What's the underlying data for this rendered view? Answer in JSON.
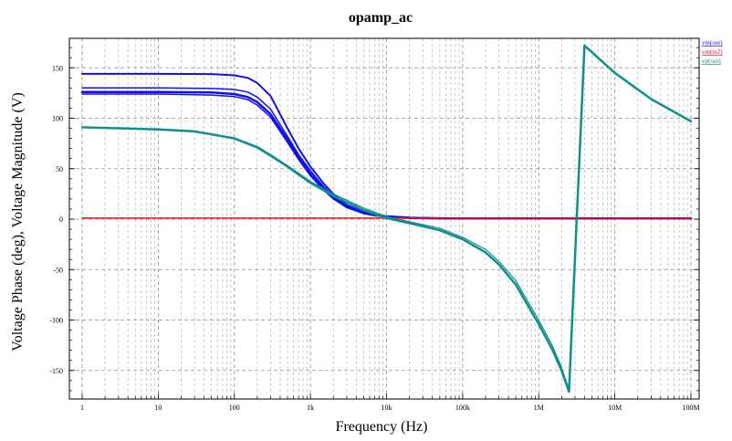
{
  "chart_data": {
    "type": "line",
    "title": "opamp_ac",
    "xlabel": "Frequency (Hz)",
    "ylabel": "Voltage Phase (deg), Voltage Magnitude (V)",
    "x_scale": "log",
    "xlim": [
      1,
      100000000
    ],
    "ylim": [
      -175,
      180
    ],
    "grid": true,
    "legend_position": "top-right outside",
    "x_ticks": [
      {
        "v": 1,
        "label": "1"
      },
      {
        "v": 10,
        "label": "10"
      },
      {
        "v": 100,
        "label": "100"
      },
      {
        "v": 1000,
        "label": "1k"
      },
      {
        "v": 10000,
        "label": "10k"
      },
      {
        "v": 100000,
        "label": "100k"
      },
      {
        "v": 1000000,
        "label": "1M"
      },
      {
        "v": 10000000,
        "label": "10M"
      },
      {
        "v": 100000000,
        "label": "100M"
      }
    ],
    "y_ticks": [
      {
        "v": 150,
        "label": "150"
      },
      {
        "v": 100,
        "label": "100"
      },
      {
        "v": 50,
        "label": "50"
      },
      {
        "v": 0,
        "label": "0"
      },
      {
        "v": -50,
        "label": "-50"
      },
      {
        "v": -100,
        "label": "-100"
      },
      {
        "v": -150,
        "label": "-150"
      }
    ],
    "series": [
      {
        "name": "vm(out)",
        "color": "#1010ee",
        "width": 2,
        "x": [
          1,
          10,
          50,
          100,
          150,
          200,
          300,
          500,
          700,
          1000,
          1500,
          2000,
          3000,
          5000,
          7000,
          10000,
          20000,
          50000,
          100000000
        ],
        "y": [
          144,
          144,
          143.8,
          142.5,
          140,
          135,
          122,
          90,
          70,
          52,
          35,
          25,
          14,
          7,
          4.5,
          3,
          1.5,
          0.8,
          0.8
        ]
      },
      {
        "name": "vm(out)",
        "color": "#1010ee",
        "width": 1.5,
        "x": [
          1,
          10,
          50,
          100,
          150,
          200,
          300,
          500,
          700,
          1000,
          1500,
          2000,
          3000,
          5000,
          7000,
          10000,
          20000,
          50000,
          100000000
        ],
        "y": [
          130,
          130,
          129.5,
          128.5,
          126,
          121,
          109,
          82,
          64,
          48,
          32,
          23,
          13,
          6.5,
          4,
          2.8,
          1.4,
          0.8,
          0.8
        ]
      },
      {
        "name": "vm(out)",
        "color": "#1010ee",
        "width": 2.5,
        "x": [
          1,
          10,
          50,
          100,
          150,
          200,
          300,
          500,
          700,
          1000,
          1500,
          2000,
          3000,
          5000,
          7000,
          10000,
          20000,
          50000,
          100000000
        ],
        "y": [
          126,
          126,
          125.5,
          124,
          121,
          116,
          104,
          79,
          61,
          45,
          30,
          21,
          12,
          6,
          3.8,
          2.6,
          1.3,
          0.8,
          0.8
        ]
      },
      {
        "name": "vm(out)",
        "color": "#1010ee",
        "width": 1.5,
        "x": [
          1,
          10,
          50,
          100,
          150,
          200,
          300,
          500,
          700,
          1000,
          1500,
          2000,
          3000,
          5000,
          7000,
          10000,
          20000,
          50000,
          100000000
        ],
        "y": [
          124,
          124,
          123,
          121.5,
          118.5,
          113,
          101,
          76,
          59,
          43,
          28.5,
          20,
          11.5,
          5.8,
          3.6,
          2.5,
          1.2,
          0.8,
          0.8
        ]
      },
      {
        "name": "vm(in2)",
        "color": "#ee1010",
        "width": 1.5,
        "x": [
          1,
          100000000
        ],
        "y": [
          1,
          1
        ]
      },
      {
        "name": "vp(out)",
        "color": "#108e8e",
        "width": 2.5,
        "x": [
          1,
          10,
          30,
          100,
          200,
          300,
          500,
          1000,
          2000,
          5000,
          10000,
          20000,
          50000,
          100000,
          200000,
          300000,
          500000,
          700000,
          1000000,
          1500000,
          2000000,
          2500000,
          4000000,
          10000000,
          30000000,
          100000000
        ],
        "y": [
          91,
          89,
          87,
          80,
          71,
          63,
          52,
          36,
          23,
          9,
          1,
          -4,
          -11,
          -20,
          -33,
          -45,
          -65,
          -84,
          -104,
          -129,
          -150,
          -171,
          172,
          145,
          119,
          97
        ]
      },
      {
        "name": "vp(out)",
        "color": "#108e8e",
        "width": 1.2,
        "x": [
          1,
          10,
          30,
          100,
          200,
          300,
          500,
          1000,
          2000,
          5000,
          10000,
          20000,
          50000,
          100000,
          200000,
          300000,
          500000,
          700000,
          1000000,
          1500000,
          2000000,
          2500000,
          4000000,
          10000000,
          30000000,
          100000000
        ],
        "y": [
          91,
          89,
          87,
          80.5,
          72,
          64,
          53,
          37.5,
          25,
          11,
          2.5,
          -2.5,
          -9,
          -18,
          -30,
          -42,
          -61,
          -80,
          -100,
          -125,
          -147,
          -169,
          172,
          145,
          119,
          97
        ]
      }
    ],
    "legend": [
      {
        "label": "vm(out)",
        "color": "#1010ee"
      },
      {
        "label": "vm(in2)",
        "color": "#ee1010"
      },
      {
        "label": "vp(out)",
        "color": "#108e8e"
      }
    ]
  }
}
